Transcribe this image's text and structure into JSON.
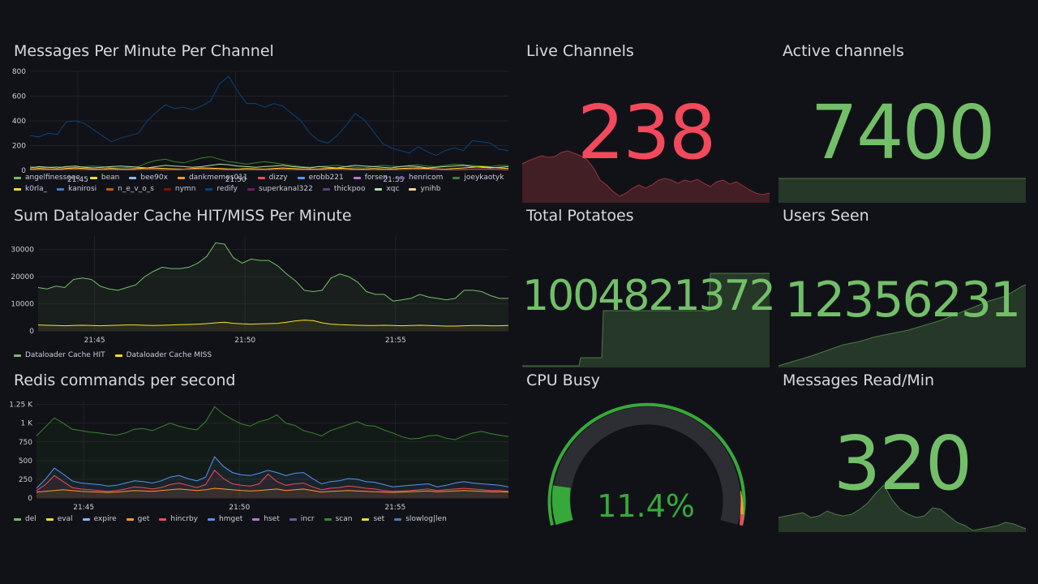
{
  "colors": {
    "green": "#73bf69",
    "red": "#f2495c",
    "yellow": "#fade2a",
    "gauge_green": "#37a93a",
    "gauge_track": "#2c2e33"
  },
  "panels": {
    "messages_per_minute": {
      "title": "Messages Per Minute Per Channel",
      "legend": [
        {
          "name": "angelfinesseee",
          "color": "#73bf69"
        },
        {
          "name": "bean",
          "color": "#fade2a"
        },
        {
          "name": "bee90x",
          "color": "#8ab8ff"
        },
        {
          "name": "dankmemes011",
          "color": "#ff9830"
        },
        {
          "name": "dizzy",
          "color": "#f2495c"
        },
        {
          "name": "erobb221",
          "color": "#5794f2"
        },
        {
          "name": "forsen",
          "color": "#b877d9"
        },
        {
          "name": "henricom",
          "color": "#705da0"
        },
        {
          "name": "joeykaotyk",
          "color": "#37872d"
        },
        {
          "name": "k0rla_",
          "color": "#fade2a"
        },
        {
          "name": "kanirosi",
          "color": "#447ebc"
        },
        {
          "name": "n_e_v_o_s",
          "color": "#c15c17"
        },
        {
          "name": "nymn",
          "color": "#890f02"
        },
        {
          "name": "redify",
          "color": "#0a437c"
        },
        {
          "name": "superkanal322",
          "color": "#6d1f62"
        },
        {
          "name": "thickpoo",
          "color": "#584477"
        },
        {
          "name": "xqc",
          "color": "#b7dbab"
        },
        {
          "name": "ynihb",
          "color": "#f4d598"
        }
      ]
    },
    "cache": {
      "title": "Sum Dataloader Cache HIT/MISS Per Minute",
      "legend": [
        {
          "name": "Dataloader Cache HIT",
          "color": "#73bf69"
        },
        {
          "name": "Dataloader Cache MISS",
          "color": "#fade2a"
        }
      ]
    },
    "redis": {
      "title": "Redis commands per second",
      "legend": [
        {
          "name": "del",
          "color": "#73bf69"
        },
        {
          "name": "eval",
          "color": "#fade2a"
        },
        {
          "name": "expire",
          "color": "#8ab8ff"
        },
        {
          "name": "get",
          "color": "#ff9830"
        },
        {
          "name": "hincrby",
          "color": "#f2495c"
        },
        {
          "name": "hmget",
          "color": "#5794f2"
        },
        {
          "name": "hset",
          "color": "#b877d9"
        },
        {
          "name": "incr",
          "color": "#705da0"
        },
        {
          "name": "scan",
          "color": "#37872d"
        },
        {
          "name": "set",
          "color": "#fade2a"
        },
        {
          "name": "slowlog|len",
          "color": "#447ebc"
        }
      ]
    },
    "live_channels": {
      "title": "Live Channels",
      "value": "238",
      "color": "#f2495c"
    },
    "active_channels": {
      "title": "Active channels",
      "value": "7400",
      "color": "#73bf69"
    },
    "total_potatoes": {
      "title": "Total Potatoes",
      "value": "1004821372",
      "color": "#73bf69"
    },
    "users_seen": {
      "title": "Users Seen",
      "value": "12356231",
      "color": "#73bf69"
    },
    "cpu_busy": {
      "title": "CPU Busy",
      "value": "11.4%",
      "percent": 11.4,
      "color": "#37a93a"
    },
    "messages_read": {
      "title": "Messages Read/Min",
      "value": "320",
      "color": "#73bf69"
    }
  },
  "chart_data": [
    {
      "type": "line",
      "title": "Messages Per Minute Per Channel",
      "ylim": [
        0,
        800
      ],
      "yticks": [
        "800",
        "600",
        "400",
        "200",
        "0"
      ],
      "xticks": [
        "21:45",
        "21:50",
        "21:55"
      ],
      "series": [
        {
          "name": "redify",
          "color": "#0a437c",
          "values": [
            280,
            270,
            300,
            290,
            390,
            400,
            380,
            330,
            280,
            230,
            260,
            280,
            300,
            400,
            470,
            530,
            500,
            510,
            490,
            520,
            560,
            700,
            760,
            640,
            540,
            540,
            510,
            540,
            520,
            460,
            400,
            300,
            240,
            220,
            280,
            360,
            460,
            410,
            320,
            220,
            180,
            160,
            140,
            190,
            150,
            120,
            160,
            180,
            160,
            240,
            230,
            220,
            170,
            160
          ]
        },
        {
          "name": "joeykaotyk",
          "color": "#37872d",
          "values": [
            30,
            20,
            25,
            30,
            20,
            25,
            30,
            35,
            30,
            20,
            20,
            25,
            30,
            60,
            80,
            90,
            70,
            60,
            80,
            100,
            110,
            90,
            70,
            60,
            50,
            60,
            70,
            60,
            50,
            40,
            30,
            25,
            30,
            35,
            40,
            30,
            25,
            20,
            30,
            40,
            35,
            30,
            40,
            45,
            35,
            30,
            40,
            50,
            45,
            40,
            35,
            30,
            40,
            40
          ]
        },
        {
          "name": "xqc",
          "color": "#b7dbab",
          "values": [
            20,
            30,
            25,
            20,
            30,
            35,
            25,
            20,
            25,
            30,
            35,
            30,
            25,
            20,
            30,
            40,
            35,
            30,
            25,
            30,
            40,
            50,
            45,
            35,
            30,
            25,
            30,
            35,
            40,
            30,
            25,
            20,
            30,
            25,
            20,
            30,
            40,
            35,
            30,
            25,
            20,
            30,
            35,
            30,
            20,
            25,
            30,
            35,
            40,
            30,
            25,
            20,
            25,
            30
          ]
        },
        {
          "name": "bean",
          "color": "#fade2a",
          "values": [
            10,
            15,
            12,
            10,
            15,
            20,
            15,
            10,
            12,
            15,
            10,
            12,
            15,
            20,
            18,
            15,
            12,
            10,
            15,
            20,
            18,
            15,
            12,
            10,
            15,
            12,
            10,
            15,
            20,
            15,
            12,
            10,
            12,
            15,
            18,
            15,
            12,
            10,
            15,
            12,
            10,
            15,
            18,
            20,
            15,
            12,
            10,
            15,
            20,
            25,
            30,
            25,
            20,
            15
          ]
        },
        {
          "name": "dizzy",
          "color": "#f2495c",
          "values": [
            5,
            8,
            6,
            5,
            8,
            10,
            8,
            6,
            5,
            8,
            6,
            5,
            8,
            10,
            8,
            6,
            5,
            8,
            10,
            12,
            10,
            8,
            6,
            5,
            8,
            6,
            5,
            8,
            10,
            8,
            6,
            5,
            6,
            8,
            10,
            8,
            6,
            5,
            8,
            6,
            5,
            8,
            10,
            12,
            10,
            8,
            6,
            5,
            8,
            10,
            12,
            10,
            8,
            6
          ]
        }
      ]
    },
    {
      "type": "line",
      "title": "Sum Dataloader Cache HIT/MISS Per Minute",
      "ylim": [
        0,
        35000
      ],
      "yticks": [
        "30000",
        "20000",
        "10000",
        "0"
      ],
      "xticks": [
        "21:45",
        "21:50",
        "21:55"
      ],
      "series": [
        {
          "name": "Dataloader Cache HIT",
          "color": "#73bf69",
          "values": [
            16000,
            15500,
            16500,
            16000,
            19000,
            19500,
            19000,
            16500,
            15500,
            15000,
            16000,
            17000,
            20000,
            22000,
            23500,
            23000,
            23000,
            23500,
            25000,
            27500,
            32500,
            32000,
            27000,
            25000,
            26500,
            26000,
            26000,
            24000,
            21000,
            18500,
            15000,
            14500,
            15000,
            19500,
            21000,
            20000,
            18000,
            14500,
            13500,
            13500,
            11000,
            11500,
            12000,
            13500,
            12500,
            12000,
            11500,
            12000,
            15000,
            15000,
            14500,
            13000,
            12000,
            12000
          ]
        },
        {
          "name": "Dataloader Cache MISS",
          "color": "#fade2a",
          "values": [
            2200,
            2100,
            2000,
            1900,
            2000,
            2100,
            2000,
            1900,
            2000,
            2100,
            2200,
            2200,
            2100,
            2000,
            2100,
            2200,
            2300,
            2400,
            2500,
            2700,
            3000,
            3200,
            2800,
            2600,
            2500,
            2600,
            2700,
            2800,
            3200,
            3700,
            4000,
            3800,
            3000,
            2500,
            2300,
            2200,
            2100,
            2000,
            2000,
            2100,
            2000,
            1900,
            2000,
            2100,
            2000,
            1900,
            1800,
            1800,
            1900,
            2000,
            2000,
            1900,
            1900,
            2000
          ]
        }
      ]
    },
    {
      "type": "area",
      "title": "Redis commands per second",
      "ylim": [
        0,
        1300
      ],
      "yticks": [
        "1.25 K",
        "1 K",
        "750",
        "500",
        "250",
        "0"
      ],
      "xticks": [
        "21:45",
        "21:50",
        "21:55"
      ],
      "series": [
        {
          "name": "scan",
          "color": "#37872d",
          "values": [
            830,
            950,
            1070,
            1000,
            920,
            900,
            880,
            870,
            850,
            840,
            870,
            920,
            930,
            900,
            950,
            1000,
            960,
            930,
            910,
            1020,
            1220,
            1120,
            1050,
            990,
            960,
            1020,
            1050,
            1110,
            1000,
            970,
            900,
            870,
            830,
            900,
            940,
            980,
            1020,
            970,
            960,
            910,
            870,
            820,
            790,
            800,
            830,
            840,
            800,
            780,
            830,
            870,
            890,
            860,
            840,
            820
          ]
        },
        {
          "name": "hmget",
          "color": "#5794f2",
          "values": [
            130,
            250,
            400,
            320,
            230,
            200,
            190,
            180,
            160,
            170,
            200,
            230,
            220,
            200,
            230,
            280,
            300,
            260,
            230,
            280,
            550,
            420,
            340,
            310,
            300,
            330,
            370,
            340,
            300,
            330,
            340,
            260,
            190,
            220,
            230,
            260,
            250,
            220,
            210,
            180,
            150,
            160,
            170,
            180,
            190,
            150,
            170,
            200,
            220,
            200,
            190,
            180,
            170,
            150
          ]
        },
        {
          "name": "hincrby",
          "color": "#f2495c",
          "values": [
            100,
            180,
            300,
            220,
            140,
            120,
            110,
            100,
            90,
            100,
            120,
            150,
            140,
            120,
            140,
            180,
            200,
            170,
            140,
            180,
            370,
            260,
            190,
            170,
            160,
            190,
            320,
            220,
            170,
            190,
            200,
            150,
            110,
            130,
            140,
            160,
            150,
            130,
            120,
            100,
            90,
            95,
            100,
            110,
            120,
            100,
            110,
            120,
            130,
            120,
            110,
            100,
            100,
            90
          ]
        },
        {
          "name": "get",
          "color": "#ff9830",
          "values": [
            80,
            90,
            100,
            110,
            100,
            90,
            85,
            80,
            75,
            80,
            90,
            100,
            95,
            90,
            100,
            110,
            120,
            110,
            100,
            110,
            130,
            120,
            110,
            100,
            95,
            100,
            110,
            120,
            100,
            110,
            120,
            100,
            80,
            90,
            95,
            100,
            95,
            90,
            85,
            80,
            75,
            80,
            85,
            90,
            95,
            85,
            90,
            95,
            100,
            95,
            90,
            85,
            85,
            80
          ]
        }
      ]
    }
  ]
}
